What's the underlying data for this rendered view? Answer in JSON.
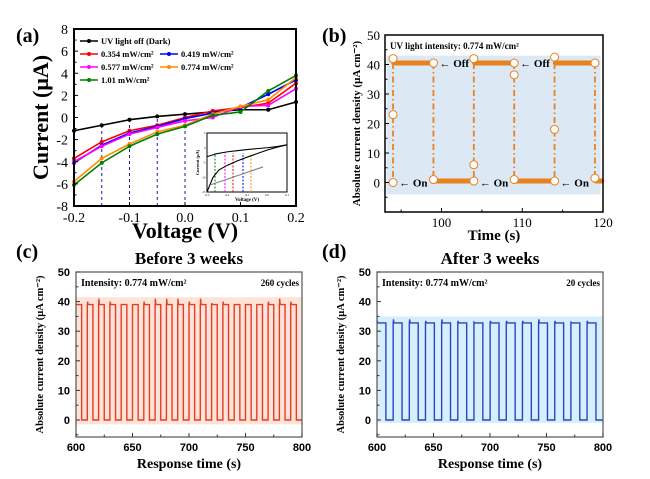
{
  "chart_data": [
    {
      "panel": "(a)",
      "type": "line",
      "xlabel": "Voltage (V)",
      "ylabel": "Current (μA)",
      "xlim": [
        -0.2,
        0.2
      ],
      "ylim": [
        -8,
        8
      ],
      "xticks": [
        "-0.2",
        "-0.1",
        "0.0",
        "0.1",
        "0.2"
      ],
      "xtick_values": [
        -0.2,
        -0.1,
        0.0,
        0.1,
        0.2
      ],
      "yticks": [
        "-8",
        "-6",
        "-4",
        "-2",
        "0",
        "2",
        "4",
        "6",
        "8"
      ],
      "ytick_values": [
        -8,
        -6,
        -4,
        -2,
        0,
        2,
        4,
        6,
        8
      ],
      "x": [
        -0.2,
        -0.15,
        -0.1,
        -0.05,
        0.0,
        0.05,
        0.1,
        0.15,
        0.2
      ],
      "series": [
        {
          "name": "UV light off (Dark)",
          "color": "#000000",
          "marker": "square",
          "values": [
            -1.2,
            -0.7,
            -0.2,
            0.1,
            0.3,
            0.5,
            0.7,
            0.7,
            1.4
          ]
        },
        {
          "name": "0.354 mW/cm²",
          "color": "#ff0000",
          "marker": "circle",
          "values": [
            -3.7,
            -2.2,
            -1.2,
            -0.7,
            0.0,
            0.6,
            0.9,
            1.3,
            3.1
          ]
        },
        {
          "name": "0.419 mW/cm²",
          "color": "#0000ff",
          "marker": "triangle-up",
          "values": [
            -4.1,
            -2.5,
            -1.4,
            -0.8,
            -0.1,
            0.4,
            0.9,
            2.1,
            3.4
          ]
        },
        {
          "name": "0.577 mW/cm²",
          "color": "#ff00ff",
          "marker": "triangle-down",
          "values": [
            -4.0,
            -2.6,
            -1.5,
            -0.9,
            -0.3,
            0.0,
            1.0,
            1.1,
            2.6
          ]
        },
        {
          "name": "0.774 mW/cm²",
          "color": "#ff8c00",
          "marker": "diamond",
          "values": [
            -5.8,
            -3.7,
            -2.4,
            -1.3,
            -0.7,
            0.3,
            1.0,
            1.6,
            3.6
          ]
        },
        {
          "name": "1.01 mW/cm²",
          "color": "#008000",
          "marker": "star",
          "values": [
            -6.1,
            -4.1,
            -2.6,
            -1.5,
            -0.8,
            0.2,
            0.5,
            2.4,
            3.8
          ]
        }
      ],
      "vlines": [
        -0.15,
        -0.1,
        -0.05,
        0.0
      ],
      "vline_color": "#1a1aaa",
      "legend": "top-left",
      "inset": {
        "xlabel": "Voltage (V)",
        "ylabel": "Current (μA)",
        "xlim": [
          -0.3,
          0.1
        ],
        "ylim": [
          -15,
          5
        ],
        "xticks": [
          "-0.3",
          "-0.2",
          "-0.1",
          "0.0",
          "0.1"
        ],
        "yticks": [
          "5",
          "0",
          "-5",
          "-10",
          "-15"
        ],
        "curves": [
          {
            "name": "dark",
            "color": "#000000",
            "x": [
              -0.3,
              -0.25,
              -0.2,
              -0.15,
              -0.1,
              -0.05,
              0.0,
              0.05,
              0.1
            ],
            "y": [
              -3,
              -2,
              -1.4,
              -1,
              -0.6,
              -0.3,
              0,
              0.4,
              1
            ]
          },
          {
            "name": "light",
            "color": "#000000",
            "x": [
              -0.3,
              -0.27,
              -0.24,
              -0.2,
              -0.15,
              -0.1,
              -0.05,
              0.0,
              0.05,
              0.1
            ],
            "y": [
              -15,
              -10,
              -7.5,
              -6,
              -4.5,
              -3.2,
              -2,
              -0.8,
              0.2,
              1
            ]
          },
          {
            "name": "fit",
            "color": "#808080",
            "x": [
              -0.28,
              -0.02
            ],
            "y": [
              -12.5,
              -6.5
            ]
          }
        ],
        "vlines": [
          {
            "x": -0.26,
            "color": "#008000"
          },
          {
            "x": -0.21,
            "color": "#ff00ff"
          },
          {
            "x": -0.17,
            "color": "#ff0000"
          },
          {
            "x": -0.12,
            "color": "#0000ff"
          },
          {
            "x": -0.08,
            "color": "#ff8c00"
          }
        ]
      }
    },
    {
      "panel": "(b)",
      "type": "line",
      "xlabel": "Time (s)",
      "ylabel": "Absolute current density (μA cm⁻²)",
      "xlim": [
        93,
        120
      ],
      "ylim": [
        -10,
        50
      ],
      "xticks": [
        "100",
        "110",
        "120"
      ],
      "xtick_values": [
        100,
        110,
        120
      ],
      "yticks": [
        "0",
        "10",
        "20",
        "30",
        "40",
        "50"
      ],
      "ytick_values": [
        0,
        10,
        20,
        30,
        40,
        50
      ],
      "annotation": "UV light intensity: 0.774 mW/cm²",
      "color": "#e8821e",
      "shade_color": "#dce8f4",
      "shade_range": [
        -4,
        43
      ],
      "on_level": 40.5,
      "off_level": 0.5,
      "switch_times": [
        94,
        99,
        104,
        109,
        114,
        119
      ],
      "start_state": "low",
      "open_markers": [
        {
          "x": 94,
          "y": 0
        },
        {
          "x": 94,
          "y": 23
        },
        {
          "x": 94,
          "y": 42
        },
        {
          "x": 99,
          "y": 40.5
        },
        {
          "x": 99,
          "y": 1
        },
        {
          "x": 104,
          "y": 0.5
        },
        {
          "x": 104,
          "y": 6
        },
        {
          "x": 104,
          "y": 42
        },
        {
          "x": 109,
          "y": 40.5
        },
        {
          "x": 109,
          "y": 36.5
        },
        {
          "x": 109,
          "y": 1
        },
        {
          "x": 114,
          "y": 0.5
        },
        {
          "x": 114,
          "y": 18
        },
        {
          "x": 114,
          "y": 42.5
        },
        {
          "x": 119,
          "y": 40.5
        },
        {
          "x": 119,
          "y": 1.5
        }
      ],
      "labels": [
        {
          "text": "← Off",
          "x": 99,
          "y": 40.5
        },
        {
          "text": "← Off",
          "x": 109,
          "y": 40.5
        },
        {
          "text": "← On",
          "x": 94,
          "y": 0
        },
        {
          "text": "← On",
          "x": 104,
          "y": 0
        },
        {
          "text": "← On",
          "x": 114,
          "y": 0
        }
      ]
    },
    {
      "panel": "(c)",
      "type": "line",
      "title": "Before 3 weeks",
      "xlabel": "Response time (s)",
      "ylabel": "Absolute current density (μA cm⁻²)",
      "xlim": [
        600,
        800
      ],
      "ylim": [
        -5,
        50
      ],
      "xticks": [
        "600",
        "650",
        "700",
        "750",
        "800"
      ],
      "xtick_values": [
        600,
        650,
        700,
        750,
        800
      ],
      "yticks": [
        "0",
        "10",
        "20",
        "30",
        "40",
        "50"
      ],
      "ytick_values": [
        0,
        10,
        20,
        30,
        40,
        50
      ],
      "annotation_left": "Intensity: 0.774 mW/cm²",
      "annotation_right": "260 cycles",
      "color": "#e83c28",
      "shade_color": "#fde4d8",
      "shade_range": [
        -1.5,
        41.5
      ],
      "period": 10,
      "first_high_start": 600,
      "high_fraction": 0.5,
      "high_level": 39,
      "low_level": 0,
      "spike_levels": [
        39,
        40,
        41,
        40,
        39,
        39,
        40,
        41,
        41,
        41,
        40,
        41,
        39.5,
        40,
        39,
        39,
        39,
        40,
        41,
        40,
        39.5
      ]
    },
    {
      "panel": "(d)",
      "type": "line",
      "title": "After 3 weeks",
      "xlabel": "Response time (s)",
      "ylabel": "Absolute current density (μA cm⁻²)",
      "xlim": [
        600,
        800
      ],
      "ylim": [
        -5,
        50
      ],
      "xticks": [
        "600",
        "650",
        "700",
        "750",
        "800"
      ],
      "xtick_values": [
        600,
        650,
        700,
        750,
        800
      ],
      "yticks": [
        "0",
        "10",
        "20",
        "30",
        "40",
        "50"
      ],
      "ytick_values": [
        0,
        10,
        20,
        30,
        40,
        50
      ],
      "annotation_left": "Intensity: 0.774 mW/cm²",
      "annotation_right": "20 cycles",
      "color": "#2846c8",
      "shade_color": "#d6effa",
      "shade_range": [
        -1,
        35
      ],
      "period": 14.3,
      "first_high_start": 600,
      "high_fraction": 0.55,
      "high_level": 32.8,
      "low_level": 0,
      "spike_levels": [
        33.5,
        34,
        34,
        33.5,
        34,
        33.5,
        33,
        33.5,
        33.5,
        33.5,
        34,
        33.5,
        33,
        33.5
      ]
    }
  ]
}
